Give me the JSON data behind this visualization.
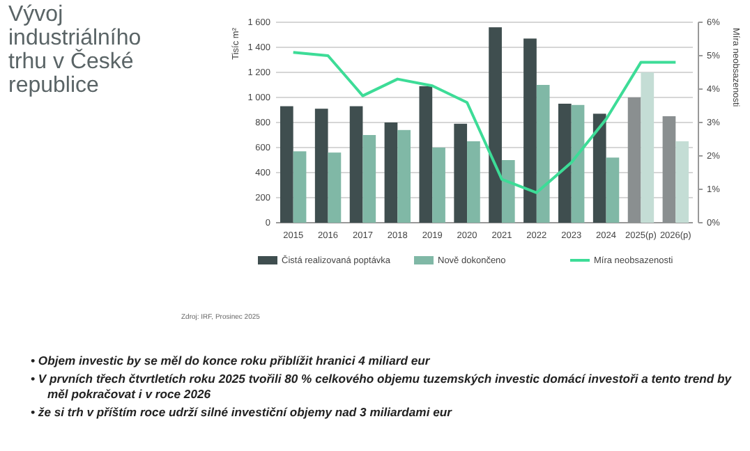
{
  "chart_data": {
    "type": "bar",
    "title": "Vývoj industriálního trhu v České republice",
    "categories": [
      "2015",
      "2016",
      "2017",
      "2018",
      "2019",
      "2020",
      "2021",
      "2022",
      "2023",
      "2024",
      "2025(p)",
      "2026(p)"
    ],
    "series": [
      {
        "name": "Čistá realizovaná poptávka",
        "color": "#3f4e4f",
        "colors": [
          "#3f4e4f",
          "#3f4e4f",
          "#3f4e4f",
          "#3f4e4f",
          "#3f4e4f",
          "#3f4e4f",
          "#3f4e4f",
          "#3f4e4f",
          "#3f4e4f",
          "#3f4e4f",
          "#8a8f90",
          "#8a8f90"
        ],
        "values": [
          930,
          910,
          930,
          800,
          1090,
          790,
          1560,
          1470,
          950,
          870,
          1000,
          850
        ]
      },
      {
        "name": "Nově dokončeno",
        "color": "#80b8a6",
        "colors": [
          "#80b8a6",
          "#80b8a6",
          "#80b8a6",
          "#80b8a6",
          "#80b8a6",
          "#80b8a6",
          "#80b8a6",
          "#80b8a6",
          "#80b8a6",
          "#80b8a6",
          "#c4ddd5",
          "#c4ddd5"
        ],
        "values": [
          570,
          560,
          700,
          740,
          600,
          650,
          500,
          1100,
          940,
          520,
          1200,
          650
        ]
      },
      {
        "name": "Míra neobsazenosti",
        "type": "line",
        "axis": "y2",
        "color": "#3ddc97",
        "values": [
          5.1,
          5.0,
          3.8,
          4.3,
          4.1,
          3.6,
          1.3,
          0.9,
          1.8,
          3.1,
          4.8,
          4.8
        ]
      }
    ],
    "ylabel": "Tisíc m²",
    "y2label": "Míra neobsazenosti",
    "ylim": [
      0,
      1600
    ],
    "yticks": [
      0,
      200,
      400,
      600,
      800,
      {
        "value": 1000,
        "label": "1 000"
      },
      {
        "value": 1200,
        "label": "1 200"
      },
      {
        "value": 1400,
        "label": "1 400"
      },
      {
        "value": 1600,
        "label": "1 600"
      }
    ],
    "y2lim": [
      0,
      6
    ],
    "y2ticks": [
      {
        "value": 0,
        "label": "0%"
      },
      {
        "value": 1,
        "label": "1%"
      },
      {
        "value": 2,
        "label": "2%"
      },
      {
        "value": 3,
        "label": "3%"
      },
      {
        "value": 4,
        "label": "4%"
      },
      {
        "value": 5,
        "label": "5%"
      },
      {
        "value": 6,
        "label": "6%"
      }
    ],
    "grid": "y",
    "legend": "bottom",
    "marker": "none",
    "annotations": [
      "Zdroj: IRF, Prosinec 2025",
      "• Objem investic by se měl do konce roku přiblížit hranici 4 miliard eur",
      "• V prvních třech čtvrtletích roku 2025 tvořili 80 % celkového objemu tuzemských investic domácí investoři a tento trend by měl pokračovat i v roce 2026",
      "• že si trh v příštím roce udrží silné investiční objemy nad 3 miliardami eur"
    ]
  }
}
